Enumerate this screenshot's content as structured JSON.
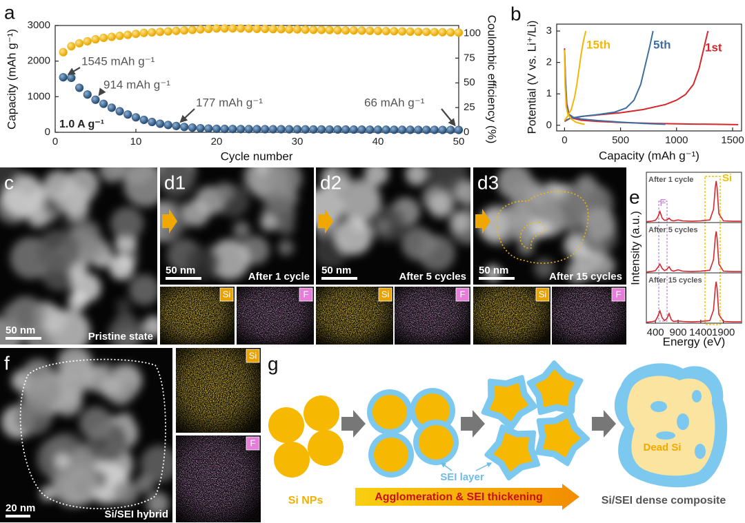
{
  "chart_data": [
    {
      "type": "scatter",
      "panel": "a",
      "xlabel": "Cycle number",
      "ylabel": "Capacity (mAh g⁻¹)",
      "y2label": "Coulombic efficiency (%)",
      "xlim": [
        0,
        50
      ],
      "xticks": [
        0,
        10,
        20,
        30,
        40,
        50
      ],
      "ylim": [
        0,
        3000
      ],
      "yticks": [
        0,
        1000,
        2000,
        3000
      ],
      "y2lim": [
        0,
        108
      ],
      "y2ticks": [
        0,
        25,
        50,
        75,
        100
      ],
      "x": [
        1,
        2,
        3,
        4,
        5,
        6,
        7,
        8,
        9,
        10,
        11,
        12,
        13,
        14,
        15,
        16,
        17,
        18,
        19,
        20,
        21,
        22,
        23,
        24,
        25,
        26,
        27,
        28,
        29,
        30,
        31,
        32,
        33,
        34,
        35,
        36,
        37,
        38,
        39,
        40,
        41,
        42,
        43,
        44,
        45,
        46,
        47,
        48,
        49,
        50
      ],
      "series": [
        {
          "color": "#f3b810",
          "axis": "y2",
          "values": [
            81,
            87,
            90,
            92,
            94,
            95.5,
            96.5,
            97.5,
            98.5,
            99.5,
            100.5,
            101,
            101.5,
            102,
            102.5,
            103,
            103.5,
            104,
            104.5,
            105,
            105,
            105,
            105,
            104.8,
            104.6,
            104.5,
            104.3,
            104.2,
            104,
            104,
            103.8,
            103.6,
            103.5,
            103.4,
            103.2,
            103,
            103,
            102.8,
            102.6,
            102.5,
            102.3,
            102.2,
            102,
            101.8,
            101.6,
            101.5,
            101.3,
            101.2,
            101,
            100.8
          ]
        },
        {
          "color": "#2f5b8a",
          "values": [
            1545,
            1530,
            1250,
            1060,
            914,
            800,
            690,
            590,
            500,
            420,
            350,
            290,
            240,
            205,
            177,
            150,
            130,
            115,
            105,
            98,
            94,
            92,
            90,
            89,
            88,
            87,
            86,
            85,
            84,
            83,
            82,
            81,
            80,
            79,
            78,
            77,
            76,
            75,
            74,
            73,
            72,
            71,
            70,
            70,
            69,
            68,
            68,
            67,
            67,
            66
          ]
        }
      ],
      "annotations": [
        "1545 mAh g⁻¹",
        "914 mAh g⁻¹",
        "177 mAh g⁻¹",
        "66 mAh g⁻¹",
        "1.0 A g⁻¹"
      ]
    },
    {
      "type": "line",
      "panel": "b",
      "xlabel": "Capacity (mAh g⁻¹)",
      "ylabel": "Potential (V vs. Li⁺/Li)",
      "xlim": [
        -70,
        1580
      ],
      "xticks": [
        0,
        500,
        1000,
        1500
      ],
      "ylim": [
        -0.18,
        3.22
      ],
      "yticks": [
        0,
        1,
        2,
        3
      ],
      "series": [
        {
          "name": "1st",
          "color": "#d7262b",
          "x": [
            0,
            8,
            20,
            40,
            80,
            150,
            300,
            500,
            800,
            1100,
            1350,
            1550,
            null,
            0,
            50,
            150,
            300,
            500,
            700,
            900,
            1000,
            1080,
            1150,
            1200,
            1240,
            1280
          ],
          "values": [
            2.45,
            1.5,
            0.7,
            0.35,
            0.22,
            0.16,
            0.12,
            0.09,
            0.06,
            0.04,
            0.03,
            0.02,
            null,
            0.12,
            0.22,
            0.28,
            0.33,
            0.4,
            0.5,
            0.66,
            0.8,
            0.98,
            1.3,
            1.8,
            2.4,
            3.0
          ]
        },
        {
          "name": "5th",
          "color": "#3c6e9f",
          "x": [
            0,
            8,
            20,
            40,
            80,
            150,
            300,
            500,
            700,
            900,
            null,
            0,
            50,
            150,
            300,
            450,
            550,
            620,
            680,
            720,
            760,
            790
          ],
          "values": [
            2.4,
            1.4,
            0.6,
            0.35,
            0.25,
            0.2,
            0.15,
            0.1,
            0.06,
            0.03,
            null,
            0.15,
            0.22,
            0.28,
            0.34,
            0.42,
            0.55,
            0.8,
            1.3,
            1.9,
            2.5,
            3.0
          ]
        },
        {
          "name": "15th",
          "color": "#f2b705",
          "x": [
            0,
            5,
            15,
            30,
            60,
            100,
            150,
            180,
            null,
            0,
            30,
            60,
            90,
            110,
            130,
            150,
            170,
            190
          ],
          "values": [
            2.4,
            1.3,
            0.6,
            0.35,
            0.2,
            0.1,
            0.05,
            0.03,
            null,
            0.15,
            0.3,
            0.5,
            0.9,
            1.3,
            1.8,
            2.3,
            2.7,
            3.0
          ]
        }
      ]
    },
    {
      "type": "line",
      "panel": "e",
      "xlabel": "Energy (eV)",
      "ylabel": "Intensity (a.u.)",
      "xlim": [
        200,
        2300
      ],
      "xticks": [
        400,
        900,
        1400,
        1900
      ],
      "ylim": [
        0,
        1.15
      ],
      "color": "#d7262b",
      "x": [
        200,
        300,
        400,
        450,
        500,
        550,
        600,
        650,
        700,
        750,
        800,
        900,
        1000,
        1200,
        1400,
        1600,
        1680,
        1720,
        1740,
        1760,
        1800,
        1900,
        2100,
        2300
      ],
      "panels": [
        {
          "title": "After 1 cycle",
          "values": [
            0.02,
            0.03,
            0.05,
            0.12,
            0.25,
            0.1,
            0.05,
            0.06,
            0.1,
            0.05,
            0.04,
            0.06,
            0.04,
            0.03,
            0.04,
            0.06,
            0.3,
            0.8,
            0.95,
            0.8,
            0.2,
            0.04,
            0.03,
            0.03
          ]
        },
        {
          "title": "After 5 cycles",
          "values": [
            0.02,
            0.03,
            0.05,
            0.12,
            0.2,
            0.1,
            0.05,
            0.08,
            0.14,
            0.06,
            0.04,
            0.07,
            0.04,
            0.03,
            0.04,
            0.06,
            0.3,
            0.8,
            0.95,
            0.8,
            0.2,
            0.04,
            0.03,
            0.03
          ]
        },
        {
          "title": "After 15 cycles",
          "values": [
            0.02,
            0.03,
            0.05,
            0.15,
            0.28,
            0.12,
            0.06,
            0.1,
            0.22,
            0.08,
            0.04,
            0.05,
            0.04,
            0.03,
            0.04,
            0.06,
            0.3,
            0.8,
            0.95,
            0.8,
            0.2,
            0.04,
            0.03,
            0.03
          ]
        }
      ],
      "annotations": [
        "F",
        "Si"
      ]
    }
  ],
  "images": [
    {
      "label": "c",
      "scale": "50 nm",
      "caption": "Pristine state"
    },
    {
      "label": "d1",
      "scale": "50 nm",
      "caption": "After 1 cycle",
      "maps": [
        "Si",
        "F"
      ]
    },
    {
      "label": "d2",
      "scale": "50 nm",
      "caption": "After 5 cycles",
      "maps": [
        "Si",
        "F"
      ]
    },
    {
      "label": "d3",
      "scale": "50 nm",
      "caption": "After 15 cycles",
      "maps": [
        "Si",
        "F"
      ]
    },
    {
      "label": "f",
      "scale": "20 nm",
      "caption": "Si/SEI hybrid",
      "maps": [
        "Si",
        "F"
      ]
    }
  ],
  "diagram": {
    "label": "g",
    "start": "Si NPs",
    "sei": "SEI layer",
    "process": "Agglomeration & SEI thickening",
    "result": "Si/SEI dense composite",
    "dead": "Dead Si"
  }
}
